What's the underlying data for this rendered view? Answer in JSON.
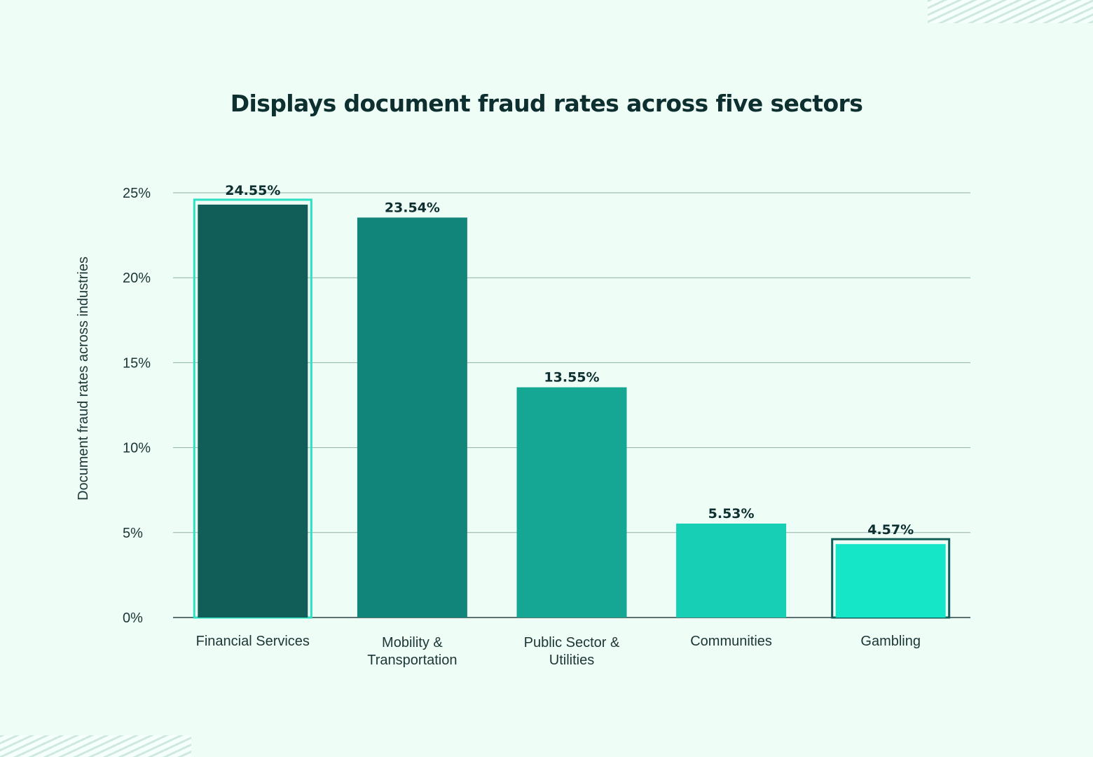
{
  "chart_data": {
    "type": "bar",
    "title": "Displays document fraud rates across five sectors",
    "xlabel": "",
    "ylabel": "Document fraud rates across industries",
    "categories": [
      [
        "Financial Services"
      ],
      [
        "Mobility &",
        "Transportation"
      ],
      [
        "Public Sector &",
        "Utilities"
      ],
      [
        "Communities"
      ],
      [
        "Gambling"
      ]
    ],
    "values": [
      24.55,
      23.54,
      13.55,
      5.53,
      4.57
    ],
    "value_labels": [
      "24.55%",
      "23.54%",
      "13.55%",
      "5.53%",
      "4.57%"
    ],
    "ylim": [
      0,
      25
    ],
    "yticks": [
      0,
      5,
      10,
      15,
      20,
      25
    ],
    "ytick_labels": [
      "0%",
      "5%",
      "10%",
      "15%",
      "20%",
      "25%"
    ],
    "grid": true,
    "legend": "none",
    "bar_colors": [
      "#115e59",
      "#12857a",
      "#15a793",
      "#16cfb5",
      "#15e6c8"
    ],
    "highlighted": [
      {
        "index": 0,
        "outline_color": "#2ce0c4"
      },
      {
        "index": 4,
        "outline_color": "#115e59"
      }
    ]
  }
}
